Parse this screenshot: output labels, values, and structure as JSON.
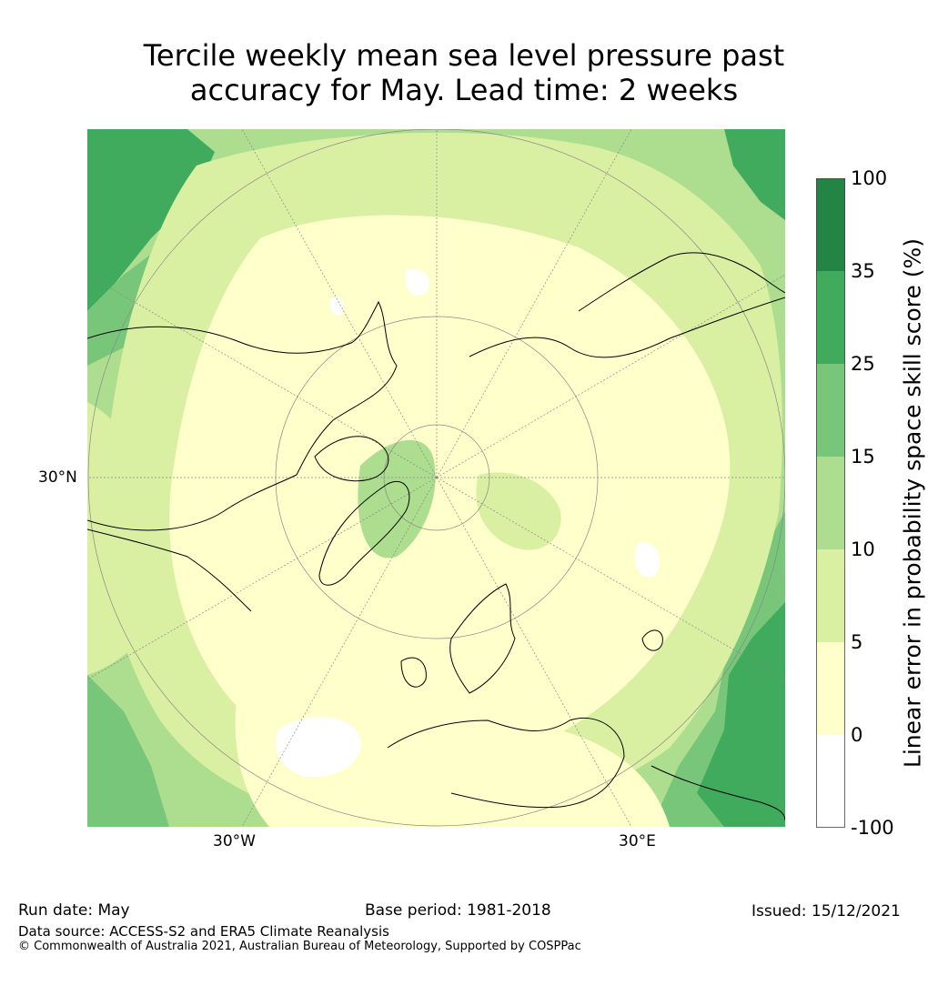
{
  "title": {
    "line1": "Tercile weekly mean sea level pressure past",
    "line2": "accuracy for May. Lead time: 2 weeks"
  },
  "map": {
    "projection": "north polar stereographic",
    "latitude_label": "30°N",
    "longitude_labels": [
      "30°W",
      "30°E"
    ],
    "dominant_fill": "#ffffcc",
    "graticule_color": "#888888",
    "coastline_color": "#000000"
  },
  "colorbar": {
    "label": "Linear error in probability space skill score (%)",
    "ticks": [
      "100",
      "35",
      "25",
      "15",
      "10",
      "5",
      "0",
      "-100"
    ],
    "bins": [
      {
        "range": "35 to 100",
        "color": "#238443"
      },
      {
        "range": "25 to 35",
        "color": "#41ab5d"
      },
      {
        "range": "15 to 25",
        "color": "#78c679"
      },
      {
        "range": "10 to 15",
        "color": "#addd8e"
      },
      {
        "range": "5 to 10",
        "color": "#d9f0a3"
      },
      {
        "range": "0 to 5",
        "color": "#ffffcc"
      },
      {
        "range": "-100 to 0",
        "color": "#ffffff"
      }
    ]
  },
  "footer": {
    "run_date": "Run date: May",
    "base_period": "Base period: 1981-2018",
    "issued": "Issued: 15/12/2021",
    "data_source": "Data source: ACCESS-S2 and ERA5 Climate Reanalysis",
    "copyright": "© Commonwealth of Australia 2021, Australian Bureau of Meteorology, Supported by COSPPac"
  }
}
